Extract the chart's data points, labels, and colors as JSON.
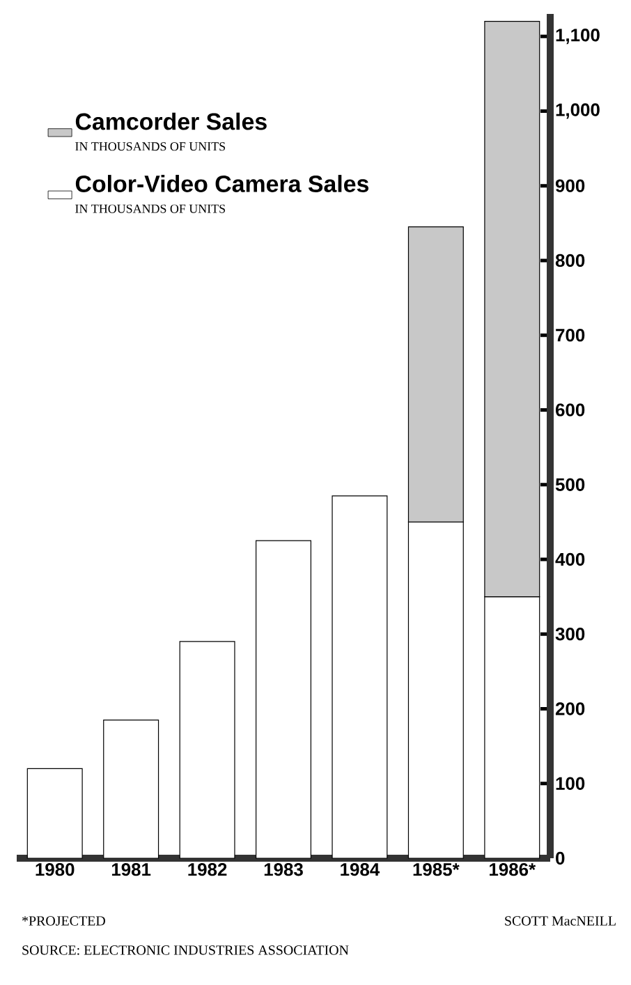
{
  "chart_data": {
    "type": "bar",
    "stacked": true,
    "categories": [
      "1980",
      "1981",
      "1982",
      "1983",
      "1984",
      "1985*",
      "1986*"
    ],
    "series": [
      {
        "name": "Color-Video Camera Sales",
        "color": "#ffffff",
        "values": [
          120,
          185,
          290,
          425,
          485,
          450,
          350
        ]
      },
      {
        "name": "Camcorder Sales",
        "color": "#c8c8c8",
        "values": [
          null,
          null,
          null,
          null,
          null,
          395,
          770
        ]
      }
    ],
    "ylim": [
      0,
      1130
    ],
    "yticks": [
      0,
      100,
      200,
      300,
      400,
      500,
      600,
      700,
      800,
      900,
      {
        "value": 1000,
        "label": "1,000"
      },
      {
        "value": 1100,
        "label": "1,100"
      }
    ],
    "legend": "top left",
    "grid": false,
    "annotations": [
      "IN THOUSANDS OF UNITS",
      "IN THOUSANDS OF UNITS",
      "*PROJECTED",
      "SCOTT MacNEILL",
      "SOURCE: ELECTRONIC INDUSTRIES ASSOCIATION"
    ]
  }
}
